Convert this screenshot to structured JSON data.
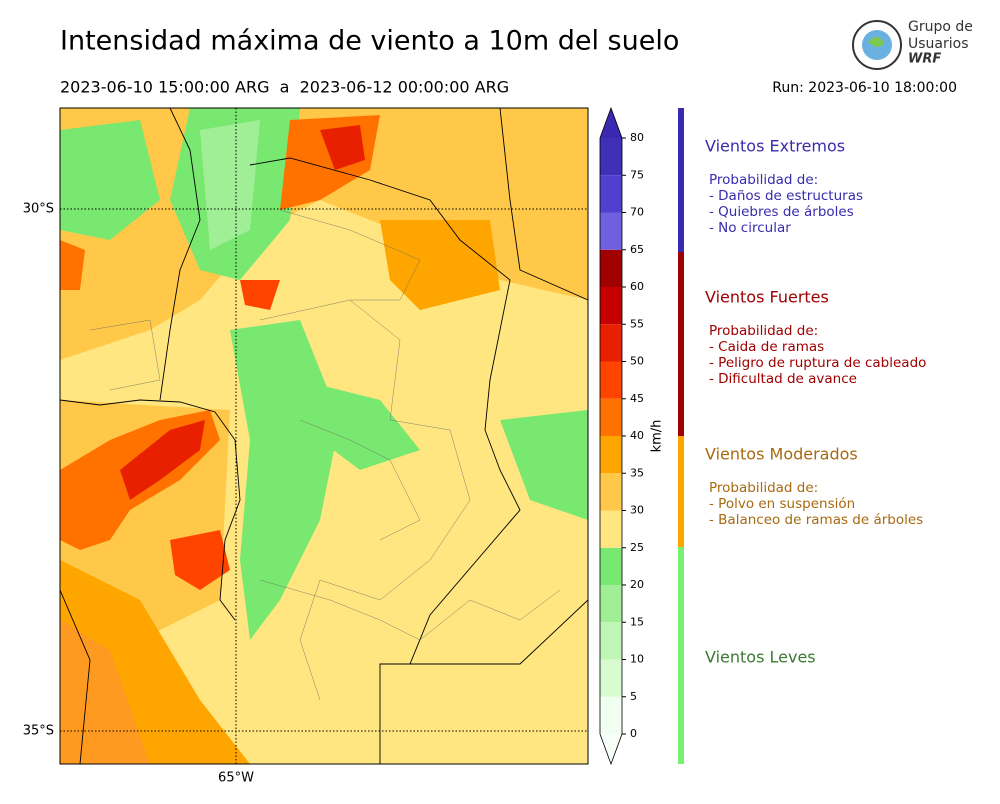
{
  "header": {
    "title": "Intensidad máxima de viento a 10m del suelo",
    "period": "2023-06-10 15:00:00 ARG  a  2023-06-12 00:00:00 ARG",
    "run": "Run: 2023-06-10 18:00:00"
  },
  "logo": {
    "line1": "Grupo de",
    "line2": "Usuarios",
    "line3": "WRF"
  },
  "map": {
    "lat_labels": [
      "30°S",
      "35°S"
    ],
    "lon_labels": [
      "65°W"
    ]
  },
  "colorbar": {
    "unit": "km/h",
    "lim": [
      0,
      80
    ],
    "ticks": [
      0,
      5,
      10,
      15,
      20,
      25,
      30,
      35,
      40,
      45,
      50,
      55,
      60,
      65,
      70,
      75,
      80
    ],
    "colors": [
      "#f0fff0",
      "#d8fbd0",
      "#bff5b5",
      "#a0ef97",
      "#78e870",
      "#ffe680",
      "#ffc848",
      "#ffa500",
      "#ff7200",
      "#ff4400",
      "#e82000",
      "#c60000",
      "#a00000",
      "#7060e0",
      "#5040d0",
      "#4030b8"
    ],
    "over_color": "#3a28b0",
    "under_color": "#f8fff8"
  },
  "legend": {
    "sections": [
      {
        "title": "Vientos Extremos",
        "color": "#3a2ab0",
        "bar_color": "#3a2ab0",
        "lines": [
          "Probabilidad de:",
          "- Daños de estructuras",
          "- Quiebres de árboles",
          "- No circular"
        ]
      },
      {
        "title": "Vientos Fuertes",
        "color": "#a00000",
        "bar_color": "#a00000",
        "lines": [
          "Probabilidad de:",
          "- Caida de ramas",
          "- Peligro de ruptura de cableado",
          "- Dificultad de avance"
        ]
      },
      {
        "title": "Vientos Moderados",
        "color": "#a86a10",
        "bar_color": "#ffa500",
        "lines": [
          "Probabilidad de:",
          "- Polvo en suspensión",
          "- Balanceo de ramas de árboles"
        ]
      },
      {
        "title": "Vientos Leves",
        "color": "#3a7a30",
        "bar_color": "#78f070",
        "lines": []
      }
    ]
  }
}
